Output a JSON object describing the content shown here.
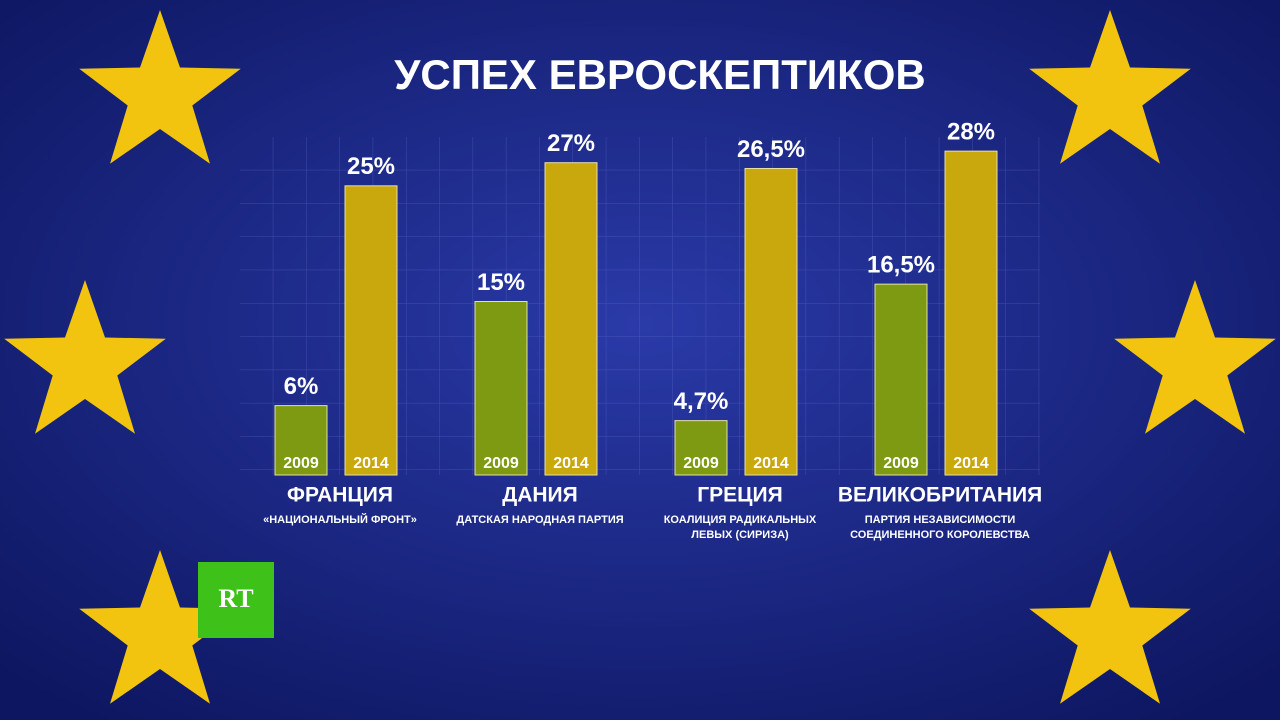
{
  "chart_data": {
    "type": "bar",
    "title": "УСПЕХ ЕВРОСКЕПТИКОВ",
    "categories": [
      "ФРАНЦИЯ",
      "ДАНИЯ",
      "ГРЕЦИЯ",
      "ВЕЛИКОБРИТАНИЯ"
    ],
    "category_subtitles": [
      "«НАЦИОНАЛЬНЫЙ ФРОНТ»",
      "ДАТСКАЯ НАРОДНАЯ ПАРТИЯ",
      "КОАЛИЦИЯ РАДИКАЛЬНЫХ ЛЕВЫХ (СИРИЗА)",
      "ПАРТИЯ НЕЗАВИСИМОСТИ СОЕДИНЕННОГО КОРОЛЕВСТВА"
    ],
    "series": [
      {
        "name": "2009",
        "color": "#7d9a12",
        "values": [
          6,
          15,
          4.7,
          16.5
        ],
        "value_labels": [
          "6%",
          "15%",
          "4,7%",
          "16,5%"
        ]
      },
      {
        "name": "2014",
        "color": "#c9a80e",
        "values": [
          25,
          27,
          26.5,
          28
        ],
        "value_labels": [
          "25%",
          "27%",
          "26,5%",
          "28%"
        ]
      }
    ],
    "ylim": [
      0,
      30
    ],
    "grid": true
  },
  "logo": "RT"
}
